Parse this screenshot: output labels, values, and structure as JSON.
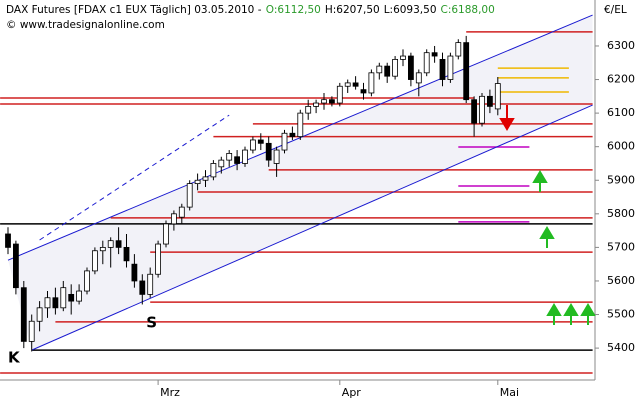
{
  "chart_data": {
    "type": "candlestick",
    "title": "DAX Futures [FDAX c1 EUX  Täglich] 03.05.2010 -",
    "info": [
      {
        "text": "O:6112,50",
        "color": "#2a9a2a"
      },
      {
        "text": "H:6207,50",
        "color": "#000000"
      },
      {
        "text": "L:6093,50",
        "color": "#000000"
      },
      {
        "text": "C:6188,00",
        "color": "#2a9a2a"
      }
    ],
    "subtitle": "© www.tradesignalonline.com",
    "y_axis_label": "€/EL",
    "categories": [
      null,
      null,
      null,
      null,
      null,
      null,
      null,
      null,
      null,
      null,
      null,
      null,
      null,
      null,
      null,
      null,
      null,
      null,
      null,
      "Mrz",
      null,
      null,
      null,
      null,
      null,
      null,
      null,
      null,
      null,
      null,
      null,
      null,
      null,
      null,
      null,
      null,
      null,
      null,
      null,
      null,
      null,
      null,
      "Apr",
      null,
      null,
      null,
      null,
      null,
      null,
      null,
      null,
      null,
      null,
      null,
      null,
      null,
      null,
      null,
      null,
      null,
      null,
      null,
      "Mai"
    ],
    "open": [
      5740,
      5710,
      5580,
      5420,
      5480,
      5520,
      5550,
      5520,
      5560,
      5540,
      5570,
      5630,
      5690,
      5700,
      5720,
      5700,
      5650,
      5600,
      5560,
      5620,
      5710,
      5770,
      5790,
      5820,
      5890,
      5900,
      5910,
      5940,
      5960,
      5970,
      5950,
      5990,
      6020,
      6010,
      5950,
      5990,
      6040,
      6030,
      6100,
      6120,
      6130,
      6140,
      6130,
      6180,
      6190,
      6170,
      6160,
      6220,
      6240,
      6210,
      6260,
      6270,
      6190,
      6220,
      6280,
      6260,
      6200,
      6270,
      6310,
      6140,
      6070,
      6150,
      6112.5
    ],
    "high": [
      5760,
      5720,
      5600,
      5500,
      5540,
      5570,
      5580,
      5600,
      5590,
      5590,
      5640,
      5700,
      5720,
      5730,
      5760,
      5740,
      5680,
      5620,
      5640,
      5720,
      5780,
      5810,
      5830,
      5900,
      5920,
      5930,
      5960,
      5970,
      5990,
      5990,
      6000,
      6030,
      6040,
      6030,
      6000,
      6050,
      6060,
      6110,
      6140,
      6140,
      6160,
      6150,
      6190,
      6200,
      6210,
      6190,
      6230,
      6250,
      6250,
      6270,
      6290,
      6280,
      6230,
      6290,
      6300,
      6280,
      6280,
      6320,
      6330,
      6150,
      6160,
      6170,
      6207.5
    ],
    "low": [
      5680,
      5560,
      5400,
      5390,
      5450,
      5490,
      5500,
      5510,
      5500,
      5530,
      5560,
      5620,
      5650,
      5640,
      5680,
      5640,
      5580,
      5530,
      5550,
      5610,
      5700,
      5750,
      5770,
      5810,
      5870,
      5880,
      5900,
      5920,
      5940,
      5930,
      5940,
      5980,
      5990,
      5940,
      5910,
      5980,
      6020,
      6020,
      6080,
      6100,
      6110,
      6120,
      6120,
      6160,
      6170,
      6140,
      6150,
      6200,
      6190,
      6200,
      6240,
      6180,
      6150,
      6210,
      6250,
      6180,
      6190,
      6260,
      6130,
      6030,
      6060,
      6100,
      6093.5
    ],
    "close": [
      5700,
      5580,
      5420,
      5480,
      5520,
      5550,
      5520,
      5580,
      5540,
      5570,
      5630,
      5690,
      5700,
      5720,
      5700,
      5660,
      5600,
      5560,
      5620,
      5710,
      5770,
      5800,
      5820,
      5890,
      5900,
      5910,
      5950,
      5960,
      5980,
      5950,
      5990,
      6020,
      6010,
      5960,
      5990,
      6040,
      6030,
      6100,
      6120,
      6130,
      6140,
      6130,
      6180,
      6190,
      6180,
      6160,
      6220,
      6240,
      6210,
      6260,
      6270,
      6200,
      6220,
      6280,
      6270,
      6200,
      6270,
      6310,
      6140,
      6070,
      6150,
      6120,
      6188
    ],
    "ylim": [
      5305,
      6428
    ],
    "yticks": [
      5400,
      5500,
      5600,
      5700,
      5800,
      5900,
      6000,
      6100,
      6200,
      6300
    ],
    "trendlines": [
      {
        "color": "#1a1ad0",
        "dash": false,
        "from": [
          0,
          5662
        ],
        "to": [
          74,
          6392
        ]
      },
      {
        "color": "#1a1ad0",
        "dash": false,
        "from": [
          3,
          5394
        ],
        "to": [
          74,
          6124
        ]
      },
      {
        "color": "#1a1ad0",
        "dash": true,
        "from": [
          4,
          5722
        ],
        "to": [
          28,
          6094
        ]
      }
    ],
    "levels": [
      {
        "value": 6342,
        "color": "#d02020",
        "start": 58,
        "end": 74
      },
      {
        "value": 6145,
        "color": "#d02020",
        "start": -1,
        "end": 59
      },
      {
        "value": 6127,
        "color": "#d02020",
        "start": -1,
        "end": 74
      },
      {
        "value": 6068,
        "color": "#d02020",
        "start": 31,
        "end": 74
      },
      {
        "value": 6030,
        "color": "#d02020",
        "start": 26,
        "end": 74
      },
      {
        "value": 5931,
        "color": "#d02020",
        "start": 33,
        "end": 74
      },
      {
        "value": 5865,
        "color": "#d02020",
        "start": 24,
        "end": 74
      },
      {
        "value": 5788,
        "color": "#d02020",
        "start": 13,
        "end": 74
      },
      {
        "value": 5770,
        "color": "#000000",
        "start": -1,
        "end": 74
      },
      {
        "value": 5686,
        "color": "#d02020",
        "start": 18,
        "end": 74
      },
      {
        "value": 5537,
        "color": "#d02020",
        "start": 18,
        "end": 74
      },
      {
        "value": 5478,
        "color": "#d02020",
        "start": 6,
        "end": 74
      },
      {
        "value": 5394,
        "color": "#000000",
        "start": 3,
        "end": 74
      },
      {
        "value": 5326,
        "color": "#d02020",
        "start": -1,
        "end": 74
      },
      {
        "value": 5999,
        "color": "#c000c0",
        "start": 57,
        "end": 66
      },
      {
        "value": 5883,
        "color": "#c000c0",
        "start": 57,
        "end": 66
      },
      {
        "value": 5776,
        "color": "#c000c0",
        "start": 57,
        "end": 66
      },
      {
        "value": 6234,
        "color": "#f0b800",
        "start": 62,
        "end": 71
      },
      {
        "value": 6205,
        "color": "#f0b800",
        "start": 62,
        "end": 71
      },
      {
        "value": 6163,
        "color": "#f0b800",
        "start": 62,
        "end": 71
      }
    ],
    "annotations": [
      {
        "text": "K",
        "at": [
          0,
          5370
        ]
      },
      {
        "text": "S",
        "at": [
          17.5,
          5475
        ]
      }
    ]
  }
}
